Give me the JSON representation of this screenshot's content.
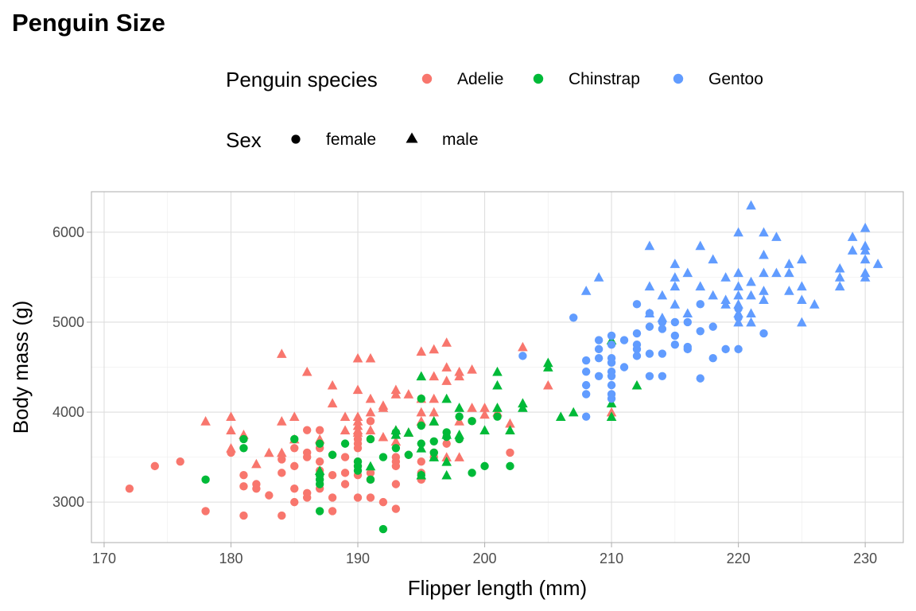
{
  "chart_data": {
    "type": "scatter",
    "title": "Penguin Size",
    "xlabel": "Flipper length (mm)",
    "ylabel": "Body mass (g)",
    "xlim": [
      169,
      233
    ],
    "ylim": [
      2550,
      6450
    ],
    "x_ticks": [
      170,
      180,
      190,
      200,
      210,
      220,
      230
    ],
    "y_ticks": [
      3000,
      4000,
      5000,
      6000
    ],
    "grid": true,
    "legend_placement": "top",
    "color_legend": {
      "title": "Penguin species",
      "entries": [
        {
          "label": "Adelie",
          "color": "#F8766D"
        },
        {
          "label": "Chinstrap",
          "color": "#00BA38"
        },
        {
          "label": "Gentoo",
          "color": "#619CFF"
        }
      ]
    },
    "shape_legend": {
      "title": "Sex",
      "entries": [
        {
          "label": "female",
          "shape": "circle"
        },
        {
          "label": "male",
          "shape": "triangle"
        }
      ]
    },
    "series": [
      {
        "species": "Adelie",
        "sex": "female",
        "points": [
          [
            172,
            3150
          ],
          [
            174,
            3400
          ],
          [
            176,
            3450
          ],
          [
            178,
            2900
          ],
          [
            180,
            3550
          ],
          [
            181,
            3300
          ],
          [
            181,
            3175
          ],
          [
            181,
            2850
          ],
          [
            182,
            3200
          ],
          [
            182,
            3150
          ],
          [
            183,
            3075
          ],
          [
            184,
            3475
          ],
          [
            184,
            3325
          ],
          [
            184,
            2850
          ],
          [
            185,
            3600
          ],
          [
            185,
            3400
          ],
          [
            185,
            3150
          ],
          [
            185,
            3000
          ],
          [
            186,
            3800
          ],
          [
            186,
            3550
          ],
          [
            186,
            3500
          ],
          [
            186,
            3100
          ],
          [
            186,
            3050
          ],
          [
            187,
            3800
          ],
          [
            187,
            3600
          ],
          [
            187,
            3450
          ],
          [
            187,
            3350
          ],
          [
            187,
            3150
          ],
          [
            188,
            3525
          ],
          [
            188,
            3300
          ],
          [
            188,
            3050
          ],
          [
            188,
            2900
          ],
          [
            189,
            3500
          ],
          [
            189,
            3325
          ],
          [
            189,
            3200
          ],
          [
            190,
            3700
          ],
          [
            190,
            3650
          ],
          [
            190,
            3600
          ],
          [
            190,
            3450
          ],
          [
            190,
            3400
          ],
          [
            190,
            3300
          ],
          [
            190,
            3050
          ],
          [
            191,
            3900
          ],
          [
            191,
            3700
          ],
          [
            191,
            3325
          ],
          [
            191,
            3250
          ],
          [
            191,
            3050
          ],
          [
            192,
            3000
          ],
          [
            193,
            3500
          ],
          [
            193,
            3450
          ],
          [
            193,
            3400
          ],
          [
            193,
            3200
          ],
          [
            193,
            2925
          ],
          [
            194,
            3525
          ],
          [
            195,
            3450
          ],
          [
            195,
            3325
          ],
          [
            195,
            3250
          ],
          [
            196,
            3550
          ],
          [
            196,
            3500
          ],
          [
            197,
            3650
          ],
          [
            198,
            3700
          ],
          [
            199,
            3900
          ],
          [
            202,
            3550
          ]
        ]
      },
      {
        "species": "Adelie",
        "sex": "male",
        "points": [
          [
            178,
            3900
          ],
          [
            180,
            3950
          ],
          [
            180,
            3800
          ],
          [
            180,
            3600
          ],
          [
            181,
            3750
          ],
          [
            182,
            3425
          ],
          [
            183,
            3550
          ],
          [
            184,
            4650
          ],
          [
            184,
            3900
          ],
          [
            184,
            3550
          ],
          [
            185,
            3950
          ],
          [
            185,
            3700
          ],
          [
            186,
            4450
          ],
          [
            187,
            3700
          ],
          [
            188,
            4300
          ],
          [
            188,
            4100
          ],
          [
            189,
            3950
          ],
          [
            189,
            3800
          ],
          [
            190,
            4600
          ],
          [
            190,
            4250
          ],
          [
            190,
            3950
          ],
          [
            190,
            3900
          ],
          [
            190,
            3850
          ],
          [
            190,
            3800
          ],
          [
            190,
            3775
          ],
          [
            191,
            4600
          ],
          [
            191,
            4150
          ],
          [
            191,
            4000
          ],
          [
            191,
            3800
          ],
          [
            192,
            4075
          ],
          [
            192,
            4050
          ],
          [
            192,
            3725
          ],
          [
            193,
            4250
          ],
          [
            193,
            4200
          ],
          [
            193,
            3800
          ],
          [
            193,
            3675
          ],
          [
            194,
            4200
          ],
          [
            194,
            3775
          ],
          [
            195,
            4675
          ],
          [
            195,
            4150
          ],
          [
            195,
            4000
          ],
          [
            195,
            3900
          ],
          [
            196,
            4700
          ],
          [
            196,
            4400
          ],
          [
            196,
            4150
          ],
          [
            196,
            4000
          ],
          [
            196,
            3900
          ],
          [
            197,
            4775
          ],
          [
            197,
            4500
          ],
          [
            197,
            4350
          ],
          [
            197,
            3500
          ],
          [
            198,
            4450
          ],
          [
            198,
            4400
          ],
          [
            198,
            3900
          ],
          [
            198,
            3500
          ],
          [
            199,
            4475
          ],
          [
            199,
            4050
          ],
          [
            200,
            4050
          ],
          [
            200,
            3975
          ],
          [
            201,
            4000
          ],
          [
            202,
            3875
          ],
          [
            203,
            4725
          ],
          [
            205,
            4300
          ],
          [
            210,
            4000
          ]
        ]
      },
      {
        "species": "Chinstrap",
        "sex": "female",
        "points": [
          [
            178,
            3250
          ],
          [
            181,
            3700
          ],
          [
            181,
            3600
          ],
          [
            185,
            3700
          ],
          [
            187,
            3650
          ],
          [
            187,
            3300
          ],
          [
            187,
            3250
          ],
          [
            187,
            3200
          ],
          [
            187,
            2900
          ],
          [
            188,
            3525
          ],
          [
            189,
            3650
          ],
          [
            190,
            3450
          ],
          [
            190,
            3400
          ],
          [
            190,
            3350
          ],
          [
            191,
            3700
          ],
          [
            191,
            3250
          ],
          [
            192,
            2700
          ],
          [
            192,
            3500
          ],
          [
            193,
            3775
          ],
          [
            193,
            3600
          ],
          [
            194,
            3525
          ],
          [
            195,
            4150
          ],
          [
            195,
            3850
          ],
          [
            195,
            3650
          ],
          [
            195,
            3300
          ],
          [
            196,
            3675
          ],
          [
            196,
            3550
          ],
          [
            197,
            3775
          ],
          [
            197,
            3725
          ],
          [
            198,
            3950
          ],
          [
            198,
            3700
          ],
          [
            199,
            3900
          ],
          [
            199,
            3325
          ],
          [
            200,
            3400
          ],
          [
            201,
            3950
          ],
          [
            202,
            3400
          ]
        ]
      },
      {
        "species": "Chinstrap",
        "sex": "male",
        "points": [
          [
            187,
            3350
          ],
          [
            191,
            3400
          ],
          [
            193,
            3800
          ],
          [
            193,
            3750
          ],
          [
            194,
            3775
          ],
          [
            195,
            4400
          ],
          [
            195,
            3600
          ],
          [
            195,
            3300
          ],
          [
            196,
            3900
          ],
          [
            196,
            3500
          ],
          [
            197,
            4150
          ],
          [
            197,
            3750
          ],
          [
            197,
            3450
          ],
          [
            197,
            3300
          ],
          [
            198,
            4050
          ],
          [
            198,
            3750
          ],
          [
            200,
            3800
          ],
          [
            201,
            4450
          ],
          [
            201,
            4300
          ],
          [
            201,
            4050
          ],
          [
            202,
            3800
          ],
          [
            203,
            4100
          ],
          [
            203,
            4050
          ],
          [
            205,
            4550
          ],
          [
            205,
            4500
          ],
          [
            206,
            3950
          ],
          [
            207,
            4000
          ],
          [
            210,
            4800
          ],
          [
            210,
            4100
          ],
          [
            210,
            3950
          ],
          [
            212,
            4300
          ]
        ]
      },
      {
        "species": "Gentoo",
        "sex": "female",
        "points": [
          [
            203,
            4625
          ],
          [
            207,
            5050
          ],
          [
            208,
            4575
          ],
          [
            208,
            4450
          ],
          [
            208,
            4300
          ],
          [
            208,
            4200
          ],
          [
            208,
            3950
          ],
          [
            209,
            4800
          ],
          [
            209,
            4700
          ],
          [
            209,
            4600
          ],
          [
            209,
            4400
          ],
          [
            210,
            4850
          ],
          [
            210,
            4750
          ],
          [
            210,
            4600
          ],
          [
            210,
            4550
          ],
          [
            210,
            4450
          ],
          [
            210,
            4400
          ],
          [
            210,
            4300
          ],
          [
            210,
            4200
          ],
          [
            210,
            4150
          ],
          [
            211,
            4800
          ],
          [
            211,
            4500
          ],
          [
            212,
            5200
          ],
          [
            212,
            4875
          ],
          [
            212,
            4750
          ],
          [
            212,
            4700
          ],
          [
            212,
            4625
          ],
          [
            213,
            5100
          ],
          [
            213,
            4950
          ],
          [
            213,
            4650
          ],
          [
            213,
            4400
          ],
          [
            214,
            5000
          ],
          [
            214,
            4925
          ],
          [
            214,
            4650
          ],
          [
            214,
            4400
          ],
          [
            215,
            5000
          ],
          [
            215,
            4850
          ],
          [
            215,
            4750
          ],
          [
            216,
            5000
          ],
          [
            216,
            4725
          ],
          [
            216,
            4700
          ],
          [
            217,
            5200
          ],
          [
            217,
            4900
          ],
          [
            217,
            4375
          ],
          [
            218,
            4950
          ],
          [
            218,
            4600
          ],
          [
            219,
            4700
          ],
          [
            220,
            5150
          ],
          [
            220,
            5050
          ],
          [
            220,
            4700
          ],
          [
            222,
            4875
          ]
        ]
      },
      {
        "species": "Gentoo",
        "sex": "male",
        "points": [
          [
            208,
            5350
          ],
          [
            209,
            5500
          ],
          [
            213,
            5850
          ],
          [
            213,
            5400
          ],
          [
            213,
            5100
          ],
          [
            214,
            5300
          ],
          [
            214,
            5050
          ],
          [
            215,
            5650
          ],
          [
            215,
            5500
          ],
          [
            215,
            5400
          ],
          [
            215,
            5200
          ],
          [
            216,
            5550
          ],
          [
            216,
            5100
          ],
          [
            217,
            5850
          ],
          [
            217,
            5400
          ],
          [
            218,
            5700
          ],
          [
            218,
            5300
          ],
          [
            219,
            5500
          ],
          [
            219,
            5250
          ],
          [
            219,
            5200
          ],
          [
            220,
            6000
          ],
          [
            220,
            5550
          ],
          [
            220,
            5400
          ],
          [
            220,
            5300
          ],
          [
            220,
            5200
          ],
          [
            220,
            5100
          ],
          [
            220,
            5000
          ],
          [
            221,
            6300
          ],
          [
            221,
            5450
          ],
          [
            221,
            5300
          ],
          [
            221,
            5100
          ],
          [
            221,
            5000
          ],
          [
            222,
            6000
          ],
          [
            222,
            5750
          ],
          [
            222,
            5550
          ],
          [
            222,
            5350
          ],
          [
            222,
            5250
          ],
          [
            223,
            5950
          ],
          [
            223,
            5550
          ],
          [
            224,
            5650
          ],
          [
            224,
            5550
          ],
          [
            224,
            5350
          ],
          [
            225,
            5700
          ],
          [
            225,
            5400
          ],
          [
            225,
            5250
          ],
          [
            225,
            5000
          ],
          [
            226,
            5200
          ],
          [
            228,
            5600
          ],
          [
            228,
            5500
          ],
          [
            228,
            5400
          ],
          [
            229,
            5950
          ],
          [
            229,
            5800
          ],
          [
            230,
            6050
          ],
          [
            230,
            5850
          ],
          [
            230,
            5800
          ],
          [
            230,
            5700
          ],
          [
            230,
            5550
          ],
          [
            230,
            5500
          ],
          [
            231,
            5650
          ]
        ]
      }
    ]
  }
}
